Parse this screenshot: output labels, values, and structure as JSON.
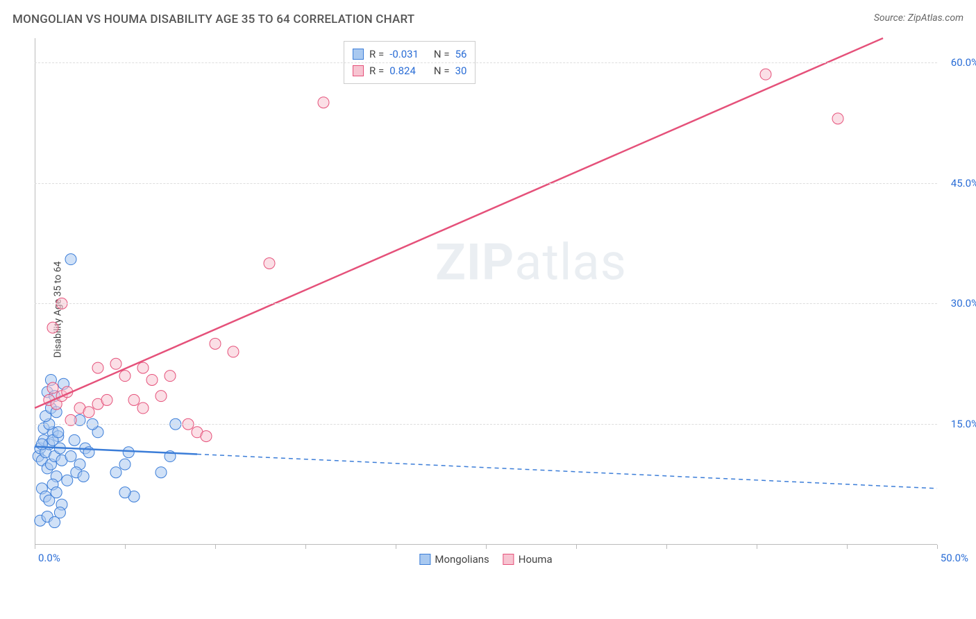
{
  "title": "MONGOLIAN VS HOUMA DISABILITY AGE 35 TO 64 CORRELATION CHART",
  "source_label": "Source: ZipAtlas.com",
  "y_axis_label": "Disability Age 35 to 64",
  "watermark": {
    "bold": "ZIP",
    "light": "atlas"
  },
  "chart": {
    "type": "scatter_with_regression",
    "xlim": [
      0,
      50
    ],
    "ylim": [
      0,
      63
    ],
    "x_ticks": [
      0,
      5,
      10,
      15,
      20,
      25,
      30,
      35,
      40,
      45,
      50
    ],
    "x_tick_labels": {
      "0": "0.0%",
      "50": "50.0%"
    },
    "y_ticks": [
      15,
      30,
      45,
      60
    ],
    "y_tick_labels": {
      "15": "15.0%",
      "30": "30.0%",
      "45": "45.0%",
      "60": "60.0%"
    },
    "grid_color": "#dddddd",
    "axis_color": "#bbbbbb",
    "background_color": "#ffffff",
    "label_color": "#2a6dd6",
    "marker_radius": 8,
    "marker_opacity": 0.55,
    "series": [
      {
        "name": "Mongolians",
        "color_fill": "#a9c9f0",
        "color_stroke": "#3b7dd8",
        "r_value": "-0.031",
        "n_value": "56",
        "regression": {
          "solid_end_x": 9,
          "x1": 0,
          "y1": 12.2,
          "x2": 50,
          "y2": 7.0,
          "stroke_width": 2.5
        },
        "points": [
          [
            0.2,
            11
          ],
          [
            0.3,
            12
          ],
          [
            0.4,
            10.5
          ],
          [
            0.5,
            13
          ],
          [
            0.6,
            11.5
          ],
          [
            0.7,
            9.5
          ],
          [
            0.8,
            12.5
          ],
          [
            0.9,
            10
          ],
          [
            1.0,
            14
          ],
          [
            1.1,
            11
          ],
          [
            1.2,
            8.5
          ],
          [
            1.3,
            13.5
          ],
          [
            1.4,
            12
          ],
          [
            1.5,
            10.5
          ],
          [
            0.4,
            7
          ],
          [
            0.6,
            6
          ],
          [
            0.8,
            5.5
          ],
          [
            1.0,
            7.5
          ],
          [
            1.2,
            6.5
          ],
          [
            1.5,
            5
          ],
          [
            0.3,
            3
          ],
          [
            0.7,
            3.5
          ],
          [
            1.1,
            2.8
          ],
          [
            1.4,
            4
          ],
          [
            2.0,
            11
          ],
          [
            2.2,
            13
          ],
          [
            2.5,
            10
          ],
          [
            2.8,
            12
          ],
          [
            3.0,
            11.5
          ],
          [
            3.5,
            14
          ],
          [
            1.8,
            8
          ],
          [
            2.3,
            9
          ],
          [
            2.7,
            8.5
          ],
          [
            1.6,
            20
          ],
          [
            0.7,
            19
          ],
          [
            0.9,
            20.5
          ],
          [
            1.1,
            18.5
          ],
          [
            3.2,
            15
          ],
          [
            2.5,
            15.5
          ],
          [
            4.5,
            9
          ],
          [
            5.0,
            10
          ],
          [
            5.2,
            11.5
          ],
          [
            5.5,
            6
          ],
          [
            5.0,
            6.5
          ],
          [
            2.0,
            35.5
          ],
          [
            7.0,
            9
          ],
          [
            7.5,
            11
          ],
          [
            7.8,
            15
          ],
          [
            0.5,
            14.5
          ],
          [
            0.8,
            15
          ],
          [
            1.0,
            13
          ],
          [
            1.3,
            14
          ],
          [
            0.6,
            16
          ],
          [
            0.9,
            17
          ],
          [
            1.2,
            16.5
          ],
          [
            0.4,
            12.5
          ]
        ]
      },
      {
        "name": "Houma",
        "color_fill": "#f7c4d1",
        "color_stroke": "#e5517a",
        "r_value": "0.824",
        "n_value": "30",
        "regression": {
          "x1": 0,
          "y1": 17,
          "x2": 47,
          "y2": 63,
          "stroke_width": 2.5
        },
        "points": [
          [
            0.8,
            18
          ],
          [
            1.0,
            19.5
          ],
          [
            1.2,
            17.5
          ],
          [
            1.5,
            18.5
          ],
          [
            1.8,
            19
          ],
          [
            1.0,
            27
          ],
          [
            1.5,
            30
          ],
          [
            2.5,
            17
          ],
          [
            3.0,
            16.5
          ],
          [
            3.5,
            17.5
          ],
          [
            4.0,
            18
          ],
          [
            3.5,
            22
          ],
          [
            4.5,
            22.5
          ],
          [
            5.0,
            21
          ],
          [
            5.5,
            18
          ],
          [
            6.0,
            17
          ],
          [
            6.5,
            20.5
          ],
          [
            7.0,
            18.5
          ],
          [
            6.0,
            22
          ],
          [
            7.5,
            21
          ],
          [
            8.5,
            15
          ],
          [
            9.0,
            14
          ],
          [
            9.5,
            13.5
          ],
          [
            10.0,
            25
          ],
          [
            11.0,
            24
          ],
          [
            13.0,
            35
          ],
          [
            16.0,
            55
          ],
          [
            40.5,
            58.5
          ],
          [
            44.5,
            53
          ],
          [
            2.0,
            15.5
          ]
        ]
      }
    ]
  },
  "legend_top": {
    "rows": [
      {
        "swatch": "blue",
        "r_label": "R =",
        "r_val": "-0.031",
        "n_label": "N =",
        "n_val": "56"
      },
      {
        "swatch": "pink",
        "r_label": "R =",
        "r_val": "0.824",
        "n_label": "N =",
        "n_val": "30"
      }
    ]
  },
  "legend_bottom": {
    "items": [
      {
        "swatch": "blue",
        "label": "Mongolians"
      },
      {
        "swatch": "pink",
        "label": "Houma"
      }
    ]
  }
}
